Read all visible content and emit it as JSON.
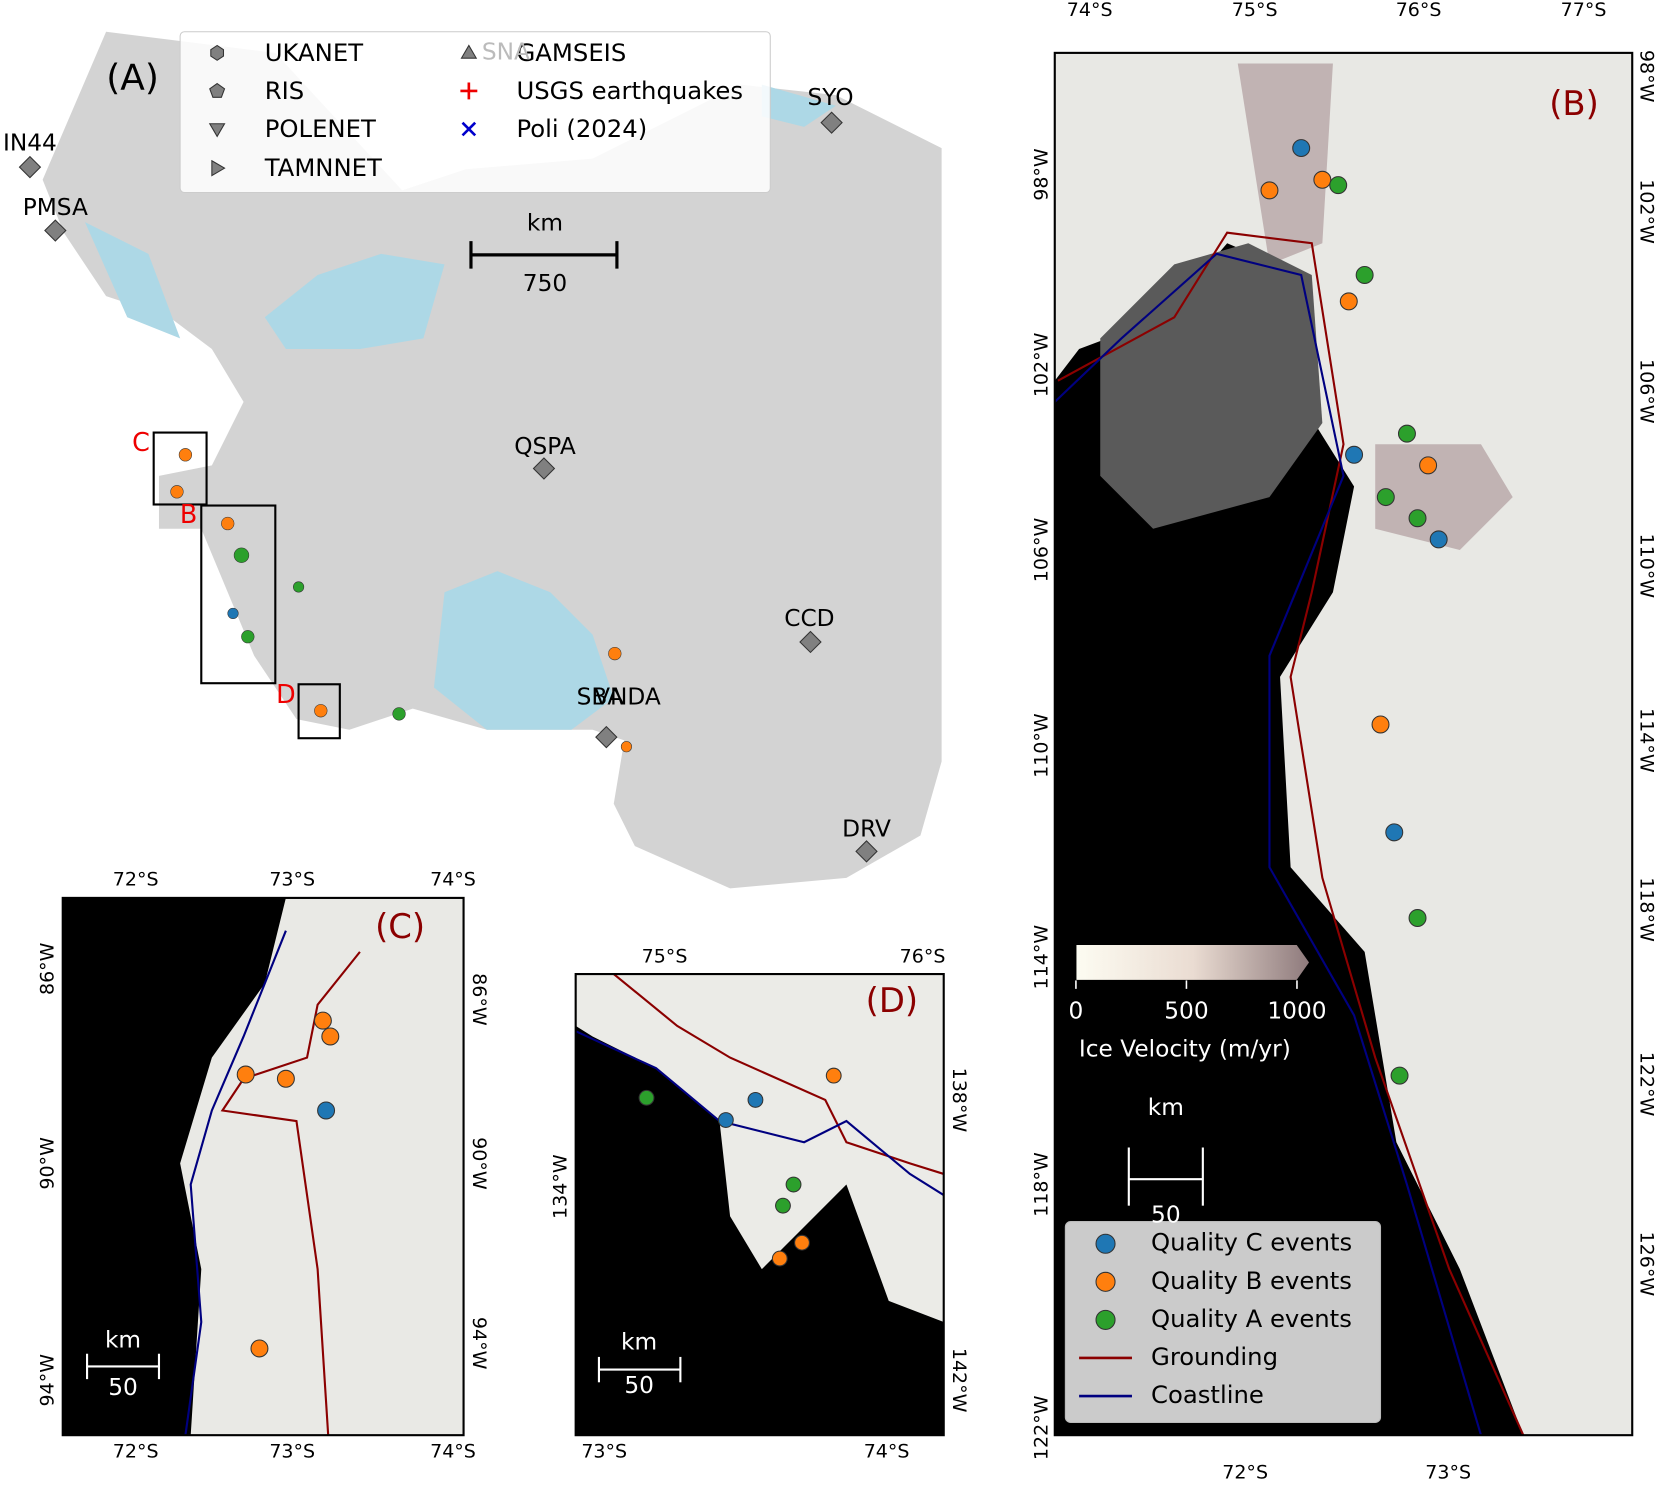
{
  "panel_a": {
    "label": "(A)",
    "legend": [
      "UKANET",
      "RIS",
      "POLENET",
      "TAMNNET",
      "GAMSEIS",
      "USGS earthquakes",
      "Poli (2024)"
    ],
    "stations": [
      "IN44",
      "PMSA",
      "SYO",
      "QSPA",
      "CCD",
      "DRV",
      "SBA",
      "VNDA",
      "SNA"
    ],
    "boxes": [
      "C",
      "B",
      "D"
    ],
    "scale_bar": {
      "unit": "km",
      "length": 750
    }
  },
  "panel_b": {
    "label": "(B)",
    "top_ticks": [
      "74°S",
      "75°S",
      "76°S",
      "77°S"
    ],
    "bottom_ticks": [
      "72°S",
      "73°S"
    ],
    "left_ticks": [
      "98°W",
      "102°W",
      "106°W",
      "110°W",
      "114°W",
      "118°W",
      "122°W"
    ],
    "right_ticks": [
      "98°W",
      "102°W",
      "106°W",
      "110°W",
      "114°W",
      "118°W",
      "122°W",
      "126°W"
    ],
    "colorbar": {
      "title": "Ice Velocity (m/yr)",
      "lim": [
        0,
        1000
      ],
      "ticks": [
        0,
        500,
        1000
      ]
    },
    "scale_bar": {
      "unit": "km",
      "length": 50
    },
    "legend": [
      "Quality C events",
      "Quality B events",
      "Quality A events",
      "Grounding",
      "Coastline"
    ]
  },
  "panel_c": {
    "label": "(C)",
    "top_ticks": [
      "72°S",
      "73°S",
      "74°S"
    ],
    "bottom_ticks": [
      "72°S",
      "73°S",
      "74°S"
    ],
    "left_ticks": [
      "86°W",
      "90°W",
      "94°W"
    ],
    "right_ticks": [
      "86°W",
      "90°W",
      "94°W"
    ],
    "scale_bar": {
      "unit": "km",
      "length": 50
    }
  },
  "panel_d": {
    "label": "(D)",
    "top_ticks": [
      "75°S",
      "76°S"
    ],
    "bottom_ticks": [
      "73°S",
      "74°S"
    ],
    "left_ticks": [
      "134°W"
    ],
    "right_ticks": [
      "138°W",
      "142°W"
    ],
    "scale_bar": {
      "unit": "km",
      "length": 50
    }
  }
}
